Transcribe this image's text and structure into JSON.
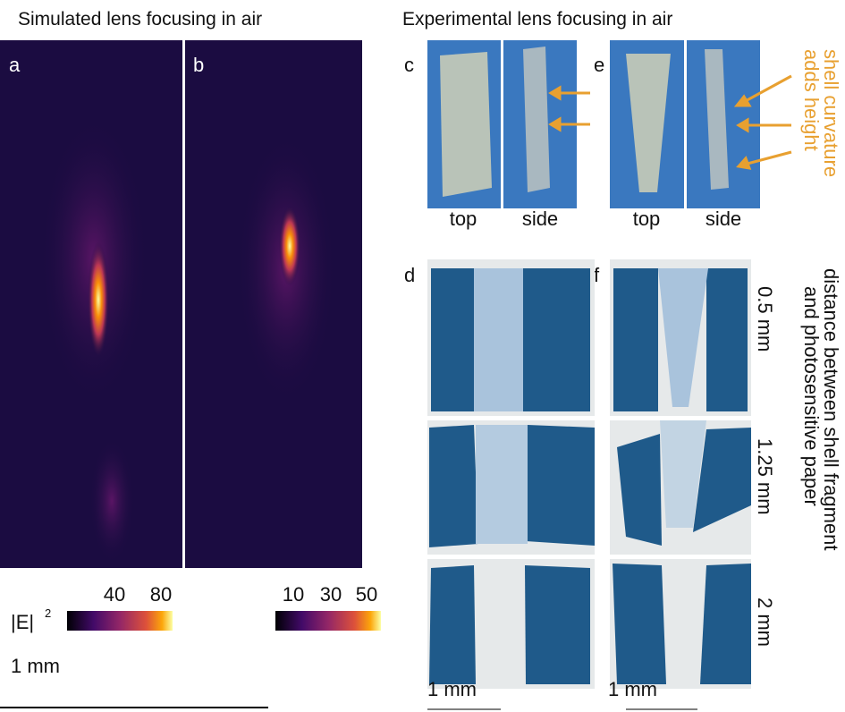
{
  "titles": {
    "left": "Simulated lens focusing in air",
    "right": "Experimental lens focusing in air"
  },
  "panels": {
    "a": "a",
    "b": "b",
    "c": "c",
    "d": "d",
    "e": "e",
    "f": "f"
  },
  "colorbar_a": {
    "label": "|E|",
    "exponent": "2",
    "ticks": [
      40,
      80
    ]
  },
  "colorbar_b": {
    "ticks": [
      10,
      30,
      50
    ]
  },
  "photo_labels": {
    "c": [
      "top",
      "side"
    ],
    "e": [
      "top",
      "side"
    ]
  },
  "annotation": [
    "shell curvature",
    "adds height"
  ],
  "distances": [
    "0.5 mm",
    "1.25 mm",
    "2 mm"
  ],
  "distance_label": [
    "distance between shell fragment",
    "and photosensitive paper"
  ],
  "scale_bars": [
    "1 mm",
    "1 mm",
    "1 mm"
  ]
}
